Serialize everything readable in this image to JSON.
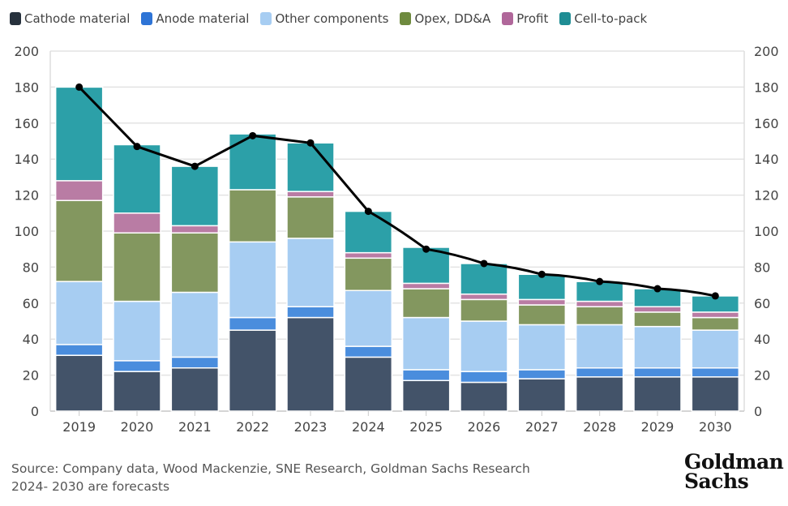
{
  "chart_data": {
    "type": "bar",
    "stacked": true,
    "categories": [
      "2019",
      "2020",
      "2021",
      "2022",
      "2023",
      "2024",
      "2025",
      "2026",
      "2027",
      "2028",
      "2029",
      "2030"
    ],
    "series": [
      {
        "name": "Cathode material",
        "color": "#435369",
        "legend_color": "#27313d",
        "values": [
          31,
          22,
          24,
          45,
          52,
          30,
          17,
          16,
          18,
          19,
          19,
          19
        ]
      },
      {
        "name": "Anode material",
        "color": "#4a8ddd",
        "legend_color": "#2e74d6",
        "values": [
          6,
          6,
          6,
          7,
          6,
          6,
          6,
          6,
          5,
          5,
          5,
          5
        ]
      },
      {
        "name": "Other components",
        "color": "#a7cdf2",
        "legend_color": "#a7cdf2",
        "values": [
          35,
          33,
          36,
          42,
          38,
          31,
          29,
          28,
          25,
          24,
          23,
          21
        ]
      },
      {
        "name": "Opex, DD&A",
        "color": "#83975f",
        "legend_color": "#6e8a3e",
        "values": [
          45,
          38,
          33,
          29,
          23,
          18,
          16,
          12,
          11,
          10,
          8,
          7
        ]
      },
      {
        "name": "Profit",
        "color": "#b97ca4",
        "legend_color": "#b0679a",
        "values": [
          11,
          11,
          4,
          0,
          3,
          3,
          3,
          3,
          3,
          3,
          3,
          3
        ]
      },
      {
        "name": "Cell-to-pack",
        "color": "#2ca0a8",
        "legend_color": "#1f8d94",
        "values": [
          52,
          38,
          33,
          31,
          27,
          23,
          20,
          17,
          14,
          11,
          10,
          9
        ]
      }
    ],
    "line": {
      "color": "#000000",
      "values": [
        180,
        147,
        136,
        153,
        149,
        111,
        90,
        82,
        76,
        72,
        68,
        64
      ]
    },
    "ylim": [
      0,
      200
    ],
    "yticks": [
      "0",
      "20",
      "40",
      "60",
      "80",
      "100",
      "120",
      "140",
      "160",
      "180",
      "200"
    ],
    "y2ticks": [
      "0",
      "20",
      "40",
      "60",
      "80",
      "100",
      "120",
      "140",
      "160",
      "180",
      "200"
    ],
    "grid": true,
    "legend_position": "top",
    "xlabel": "",
    "ylabel": ""
  },
  "footer": {
    "source": "Source: Company data, Wood Mackenzie, SNE Research, Goldman Sachs Research",
    "note": "2024- 2030 are forecasts"
  },
  "logo": {
    "line1": "Goldman",
    "line2": "Sachs"
  }
}
